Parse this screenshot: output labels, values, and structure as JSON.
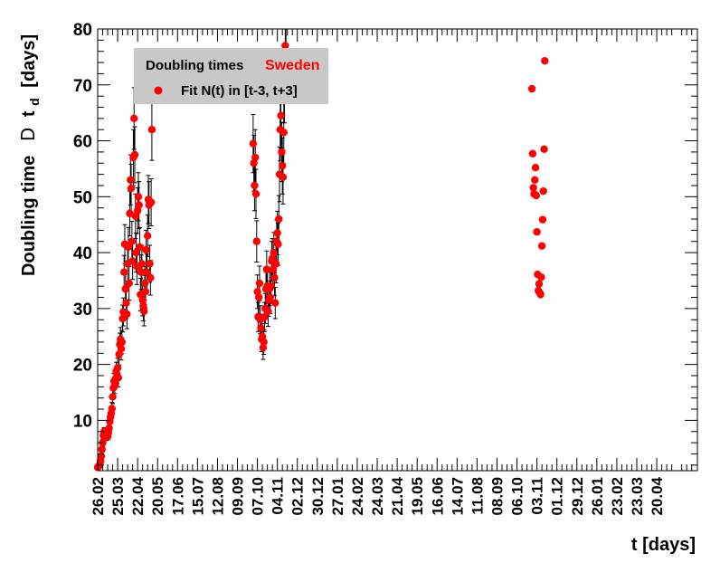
{
  "chart_data": {
    "type": "scatter",
    "title": "",
    "xlabel": "t [days]",
    "ylabel_main": "Doubling time",
    "ylabel_symbol": "D",
    "ylabel_var": "t",
    "ylabel_sub": "d",
    "ylabel_unit": "[days]",
    "xlim": [
      0,
      660
    ],
    "ylim": [
      1,
      80
    ],
    "y_ticks": [
      10,
      20,
      30,
      40,
      50,
      60,
      70,
      80
    ],
    "x_ticks": [
      {
        "day": 0,
        "label": "26.02"
      },
      {
        "day": 28,
        "label": "25.03"
      },
      {
        "day": 56,
        "label": "22.04"
      },
      {
        "day": 84,
        "label": "20.05"
      },
      {
        "day": 112,
        "label": "17.06"
      },
      {
        "day": 140,
        "label": "15.07"
      },
      {
        "day": 168,
        "label": "12.08"
      },
      {
        "day": 196,
        "label": "09.09"
      },
      {
        "day": 224,
        "label": "07.10"
      },
      {
        "day": 252,
        "label": "04.11"
      },
      {
        "day": 280,
        "label": "02.12"
      },
      {
        "day": 308,
        "label": "30.12"
      },
      {
        "day": 336,
        "label": "27.01"
      },
      {
        "day": 364,
        "label": "24.02"
      },
      {
        "day": 392,
        "label": "24.03"
      },
      {
        "day": 420,
        "label": "21.04"
      },
      {
        "day": 448,
        "label": "19.05"
      },
      {
        "day": 476,
        "label": "16.06"
      },
      {
        "day": 504,
        "label": "14.07"
      },
      {
        "day": 532,
        "label": "11.08"
      },
      {
        "day": 560,
        "label": "08.09"
      },
      {
        "day": 588,
        "label": "06.10"
      },
      {
        "day": 616,
        "label": "03.11"
      },
      {
        "day": 644,
        "label": "01.12"
      },
      {
        "day": 672,
        "label": "29.12"
      },
      {
        "day": 700,
        "label": "26.01"
      },
      {
        "day": 728,
        "label": "23.02"
      },
      {
        "day": 756,
        "label": "23.03"
      },
      {
        "day": 784,
        "label": "20.04"
      }
    ],
    "legend": {
      "title": "Doubling times",
      "country": "Sweden",
      "entry": "Fit N(t) in [t-3, t+3]",
      "placement": "top-left"
    },
    "series": [
      {
        "color": "#ff0000",
        "points": [
          [
            0,
            1.6,
            0.3
          ],
          [
            1,
            1.7,
            0.3
          ],
          [
            2,
            1.9,
            0.3
          ],
          [
            3,
            2.2,
            0.3
          ],
          [
            4,
            2.7,
            0.4
          ],
          [
            5,
            3.6,
            0.4
          ],
          [
            6,
            4.8,
            0.5
          ],
          [
            7,
            6.0,
            0.6
          ],
          [
            8,
            7.3,
            0.6
          ],
          [
            9,
            8.0,
            0.7
          ],
          [
            10,
            7.6,
            0.7
          ],
          [
            11,
            7.2,
            0.6
          ],
          [
            12,
            7.0,
            0.6
          ],
          [
            13,
            7.4,
            0.6
          ],
          [
            14,
            7.1,
            0.6
          ],
          [
            15,
            7.8,
            0.7
          ],
          [
            16,
            8.6,
            0.8
          ],
          [
            17,
            9.8,
            0.8
          ],
          [
            18,
            10.6,
            0.9
          ],
          [
            19,
            11.2,
            1.0
          ],
          [
            20,
            12.1,
            1.1
          ],
          [
            21,
            14.2,
            1.2
          ],
          [
            22,
            15.8,
            1.3
          ],
          [
            23,
            17.0,
            1.4
          ],
          [
            24,
            16.2,
            1.4
          ],
          [
            25,
            17.4,
            1.5
          ],
          [
            26,
            18.8,
            1.6
          ],
          [
            27,
            18.2,
            1.6
          ],
          [
            28,
            19.4,
            1.7
          ],
          [
            29,
            17.6,
            1.6
          ],
          [
            30,
            21.8,
            1.9
          ],
          [
            31,
            23.6,
            2.0
          ],
          [
            32,
            24.5,
            2.1
          ],
          [
            33,
            22.8,
            2.0
          ],
          [
            34,
            24.0,
            2.1
          ],
          [
            35,
            28.2,
            2.4
          ],
          [
            36,
            29.4,
            2.5
          ],
          [
            37,
            36.5,
            3.0
          ],
          [
            38,
            41.5,
            3.5
          ],
          [
            39,
            33.5,
            3.0
          ],
          [
            40,
            31.0,
            2.8
          ],
          [
            41,
            29.0,
            2.6
          ],
          [
            42,
            38.0,
            3.2
          ],
          [
            43,
            41.0,
            3.5
          ],
          [
            44,
            34.5,
            3.0
          ],
          [
            45,
            47.0,
            4.0
          ],
          [
            46,
            53.0,
            4.5
          ],
          [
            47,
            51.5,
            4.3
          ],
          [
            48,
            42.0,
            3.6
          ],
          [
            49,
            38.5,
            3.3
          ],
          [
            50,
            57.0,
            5.0
          ],
          [
            51,
            64.0,
            5.5
          ],
          [
            52,
            57.5,
            5.0
          ],
          [
            53,
            46.5,
            4.0
          ],
          [
            54,
            40.0,
            3.5
          ],
          [
            55,
            37.5,
            3.2
          ],
          [
            56,
            47.5,
            4.1
          ],
          [
            57,
            50.0,
            4.3
          ],
          [
            58,
            48.5,
            4.2
          ],
          [
            59,
            41.0,
            3.5
          ],
          [
            60,
            32.5,
            2.9
          ],
          [
            61,
            36.5,
            3.1
          ],
          [
            62,
            38.0,
            3.3
          ],
          [
            63,
            31.5,
            2.8
          ],
          [
            64,
            30.5,
            2.7
          ],
          [
            65,
            29.5,
            2.6
          ],
          [
            66,
            34.5,
            3.0
          ],
          [
            67,
            33.0,
            2.9
          ],
          [
            68,
            40.5,
            3.5
          ],
          [
            69,
            36.5,
            3.2
          ],
          [
            70,
            43.0,
            3.7
          ],
          [
            71,
            49.5,
            4.3
          ],
          [
            72,
            48.5,
            4.2
          ],
          [
            73,
            38.0,
            3.3
          ],
          [
            74,
            35.5,
            3.1
          ],
          [
            75,
            49.0,
            4.2
          ],
          [
            76,
            62.0,
            5.5
          ],
          [
            218,
            59.5,
            5.2
          ],
          [
            219,
            56.0,
            5.0
          ],
          [
            220,
            52.0,
            4.5
          ],
          [
            221,
            57.0,
            5.0
          ],
          [
            222,
            50.5,
            4.4
          ],
          [
            223,
            42.0,
            3.7
          ],
          [
            224,
            33.0,
            3.0
          ],
          [
            225,
            28.5,
            2.6
          ],
          [
            226,
            32.0,
            2.9
          ],
          [
            227,
            34.5,
            3.1
          ],
          [
            228,
            28.0,
            2.5
          ],
          [
            229,
            26.5,
            2.4
          ],
          [
            230,
            24.5,
            2.2
          ],
          [
            231,
            25.0,
            2.3
          ],
          [
            232,
            23.0,
            2.1
          ],
          [
            233,
            24.0,
            2.2
          ],
          [
            234,
            28.5,
            2.6
          ],
          [
            235,
            30.0,
            2.7
          ],
          [
            236,
            33.5,
            3.0
          ],
          [
            237,
            37.0,
            3.3
          ],
          [
            238,
            34.0,
            3.1
          ],
          [
            239,
            29.5,
            2.7
          ],
          [
            240,
            31.5,
            2.9
          ],
          [
            241,
            33.5,
            3.0
          ],
          [
            242,
            32.0,
            2.9
          ],
          [
            243,
            34.0,
            3.1
          ],
          [
            244,
            38.5,
            3.5
          ],
          [
            245,
            39.0,
            3.5
          ],
          [
            246,
            37.0,
            3.4
          ],
          [
            247,
            40.0,
            3.6
          ],
          [
            248,
            35.5,
            3.2
          ],
          [
            249,
            31.0,
            2.8
          ],
          [
            250,
            38.0,
            3.4
          ],
          [
            251,
            42.0,
            3.8
          ],
          [
            252,
            43.5,
            3.9
          ],
          [
            253,
            41.5,
            3.8
          ],
          [
            254,
            46.0,
            4.2
          ],
          [
            255,
            54.0,
            4.9
          ],
          [
            256,
            62.0,
            5.6
          ],
          [
            257,
            64.5,
            5.8
          ],
          [
            258,
            58.0,
            5.3
          ],
          [
            259,
            55.5,
            5.0
          ],
          [
            260,
            53.5,
            4.8
          ],
          [
            261,
            61.5,
            5.6
          ],
          [
            262,
            69.5,
            6.3
          ],
          [
            263,
            77.0,
            7.0
          ],
          [
            264,
            75.0,
            6.8
          ],
          [
            609,
            69.3,
            0
          ],
          [
            610,
            57.7,
            0
          ],
          [
            611,
            51.6,
            0
          ],
          [
            612,
            50.5,
            0
          ],
          [
            613,
            53.0,
            0
          ],
          [
            614,
            55.2,
            0
          ],
          [
            615,
            50.2,
            0
          ],
          [
            616,
            43.7,
            0
          ],
          [
            617,
            36.1,
            0
          ],
          [
            618,
            33.2,
            0
          ],
          [
            619,
            34.4,
            0
          ],
          [
            620,
            32.8,
            0
          ],
          [
            621,
            32.5,
            0
          ],
          [
            622,
            35.6,
            0
          ],
          [
            623,
            41.2,
            0
          ],
          [
            624,
            45.9,
            0
          ],
          [
            625,
            51.0,
            0
          ],
          [
            626,
            58.5,
            0
          ],
          [
            627,
            74.3,
            0
          ]
        ]
      }
    ]
  }
}
